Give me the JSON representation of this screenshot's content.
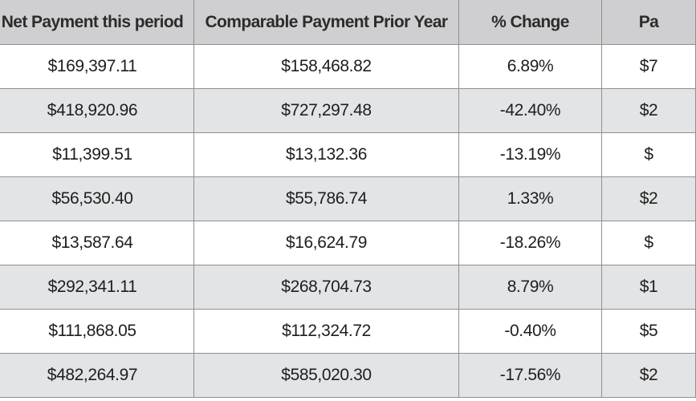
{
  "table": {
    "headers": [
      "Net Payment this period",
      "Comparable Payment Prior Year",
      "% Change",
      "Pa"
    ],
    "rows": [
      [
        "$169,397.11",
        "$158,468.82",
        "6.89%",
        "$7"
      ],
      [
        "$418,920.96",
        "$727,297.48",
        "-42.40%",
        "$2"
      ],
      [
        "$11,399.51",
        "$13,132.36",
        "-13.19%",
        "$"
      ],
      [
        "$56,530.40",
        "$55,786.74",
        "1.33%",
        "$2"
      ],
      [
        "$13,587.64",
        "$16,624.79",
        "-18.26%",
        "$"
      ],
      [
        "$292,341.11",
        "$268,704.73",
        "8.79%",
        "$1"
      ],
      [
        "$111,868.05",
        "$112,324.72",
        "-0.40%",
        "$5"
      ],
      [
        "$482,264.97",
        "$585,020.30",
        "-17.56%",
        "$2"
      ]
    ]
  }
}
